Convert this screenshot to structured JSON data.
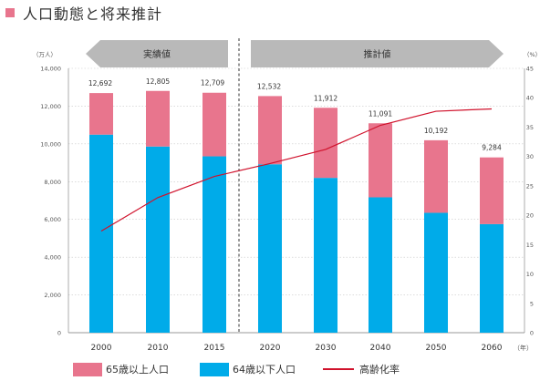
{
  "title": "人口動態と将来推計",
  "colors": {
    "title_marker": "#e8758d",
    "senior": "#e8758d",
    "working": "#00abe9",
    "ratio_line": "#d0122c",
    "arrow": "#b9b9b9",
    "grid": "#c8c8c8"
  },
  "chart_data": {
    "type": "bar",
    "stacked": true,
    "categories": [
      "2000",
      "2010",
      "2015",
      "2020",
      "2030",
      "2040",
      "2050",
      "2060"
    ],
    "x_unit": "（年）",
    "totals_labels": [
      "12,692",
      "12,805",
      "12,709",
      "12,532",
      "11,912",
      "11,091",
      "10,192",
      "9,284"
    ],
    "series": [
      {
        "name": "64歳以下人口",
        "values": [
          10490,
          9860,
          9340,
          8920,
          8200,
          7170,
          6350,
          5750
        ]
      },
      {
        "name": "65歳以上人口",
        "values": [
          2202,
          2945,
          3369,
          3612,
          3712,
          3921,
          3842,
          3534
        ]
      }
    ],
    "line_series": {
      "name": "高齢化率",
      "axis": "right",
      "values": [
        17.3,
        23.0,
        26.6,
        28.8,
        31.2,
        35.3,
        37.7,
        38.1
      ]
    },
    "left_axis": {
      "unit": "（万人）",
      "ylim": [
        0,
        14000
      ],
      "ticks": [
        "0",
        "2,000",
        "4,000",
        "6,000",
        "8,000",
        "10,000",
        "12,000",
        "14,000"
      ]
    },
    "right_axis": {
      "unit": "（%）",
      "ylim": [
        0,
        45
      ],
      "ticks": [
        "0",
        "5",
        "10",
        "15",
        "20",
        "25",
        "30",
        "35",
        "40",
        "45"
      ]
    },
    "periods": [
      {
        "label": "実績値",
        "direction": "left"
      },
      {
        "label": "推計値",
        "direction": "right"
      }
    ],
    "grid": true,
    "legend_position": "bottom"
  }
}
